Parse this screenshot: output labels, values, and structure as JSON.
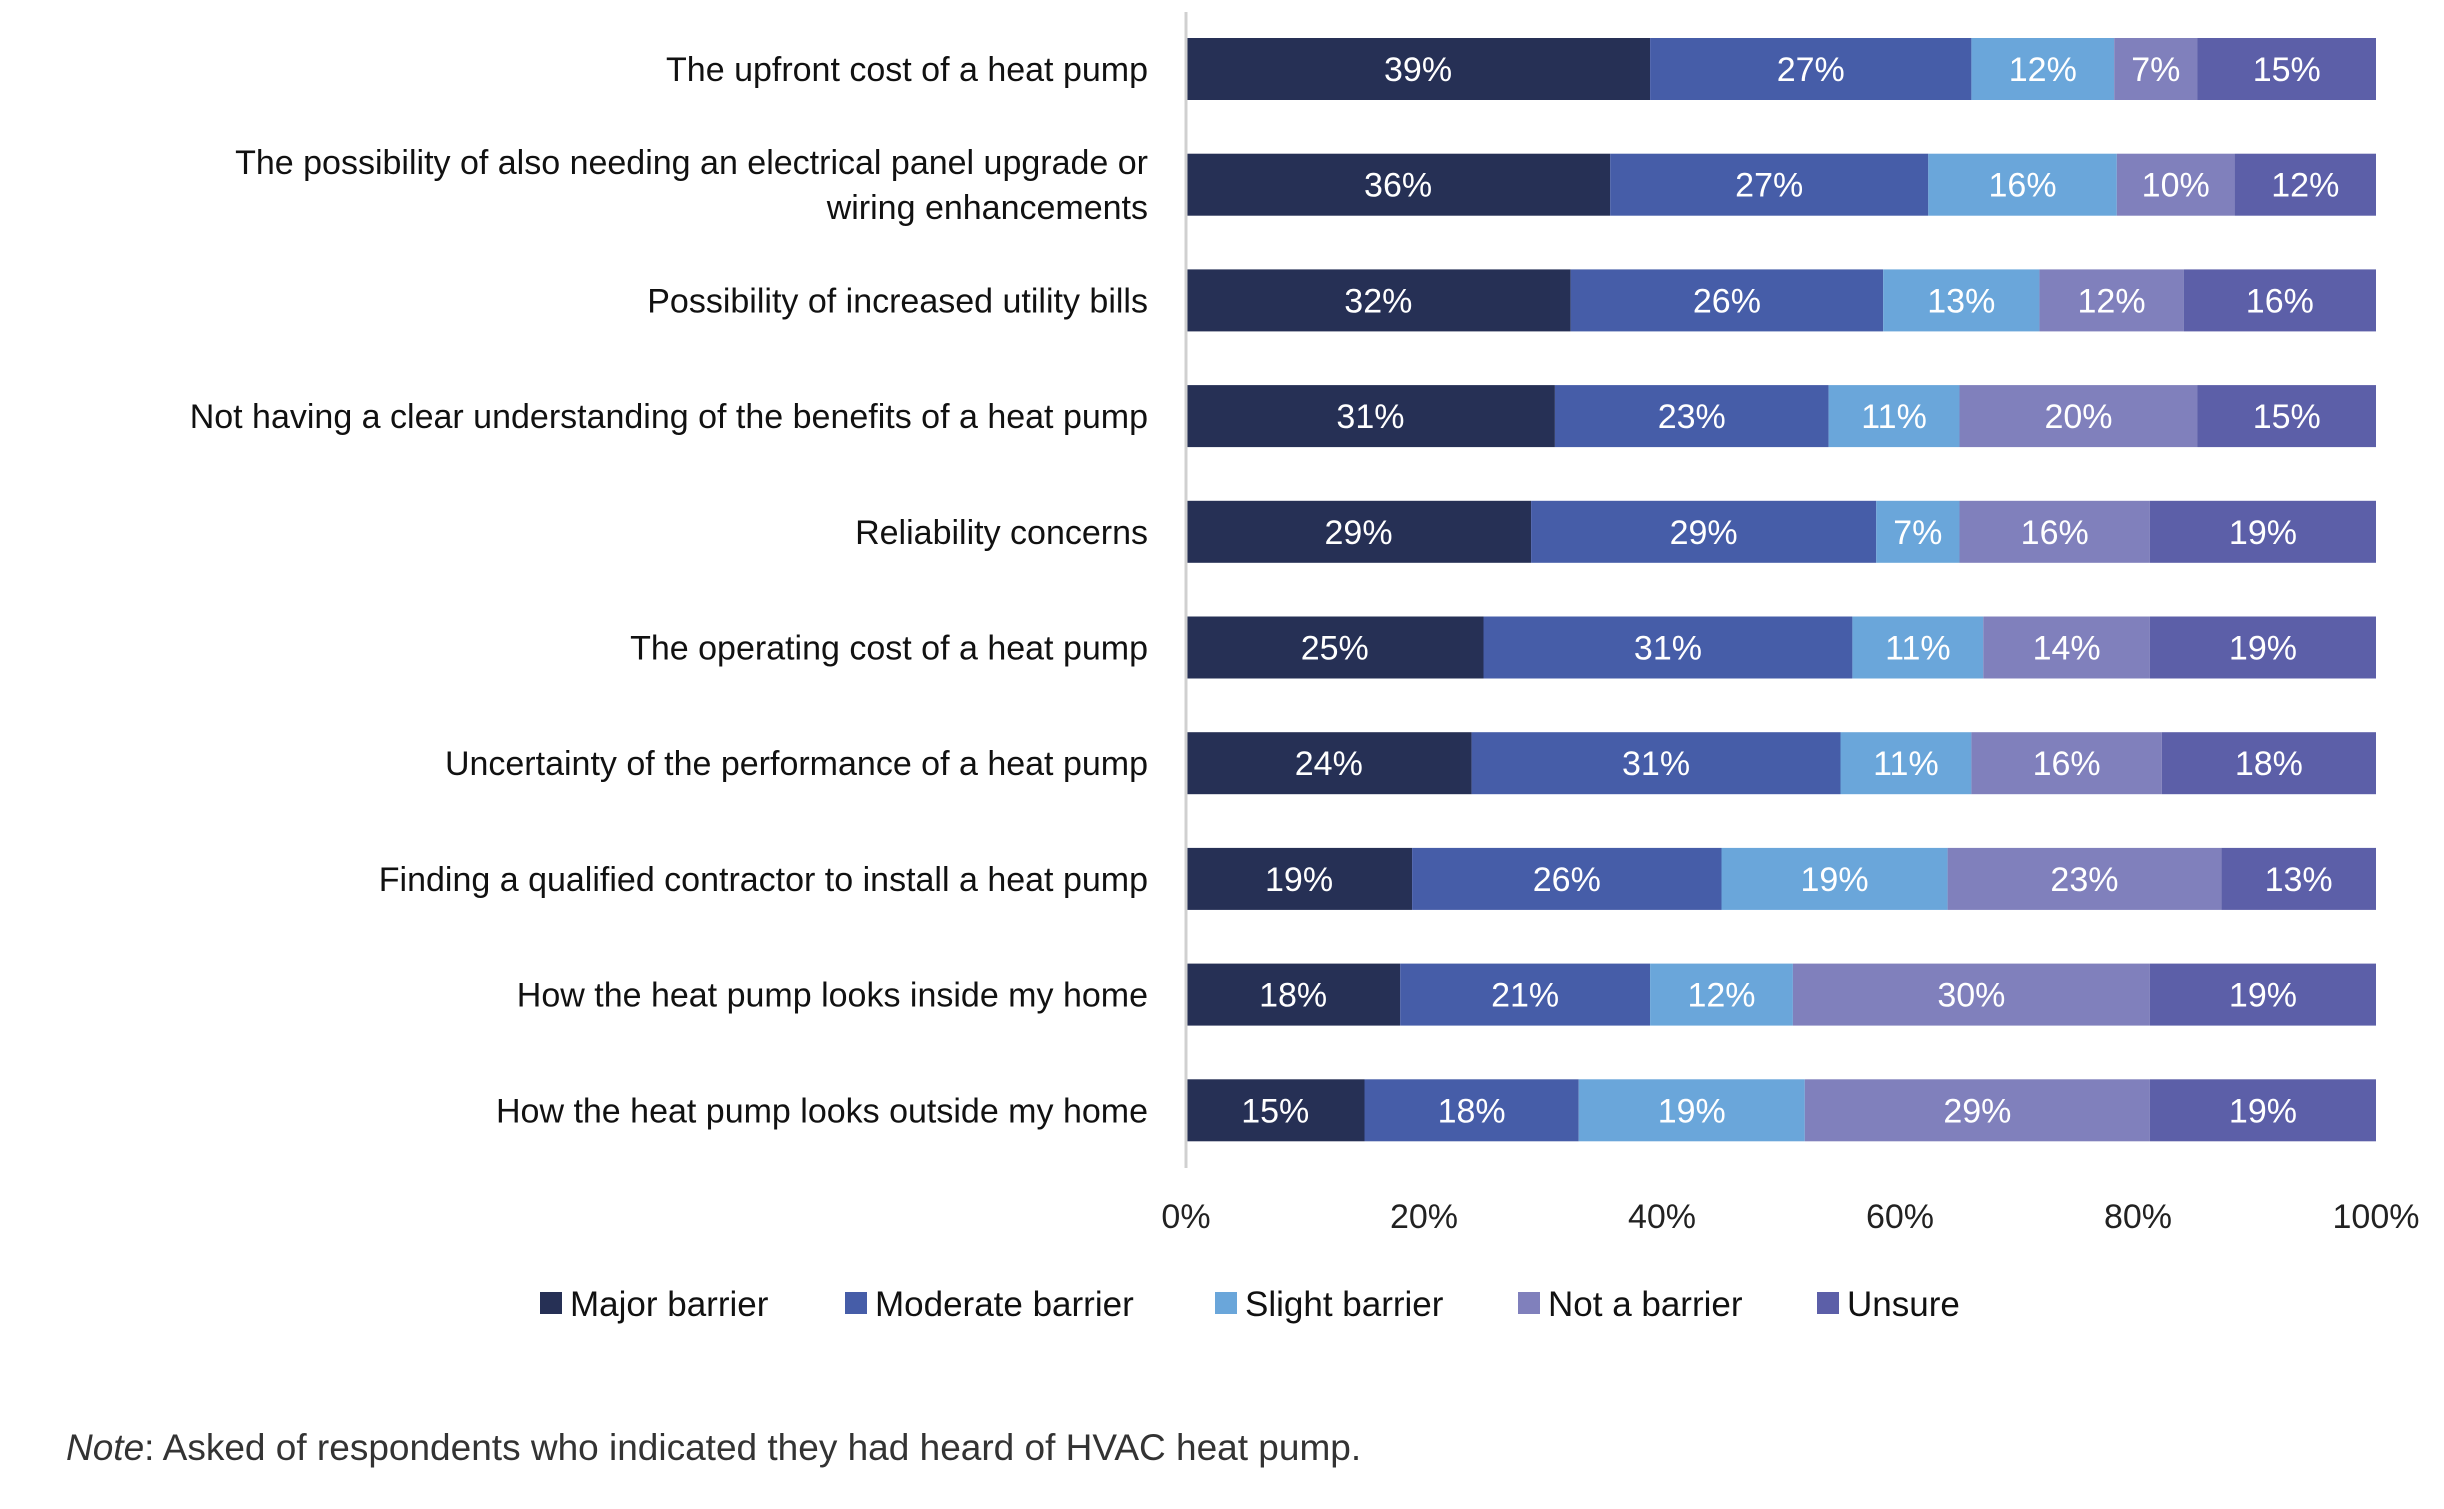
{
  "chart_data": {
    "type": "bar",
    "orientation": "horizontal",
    "stacked": true,
    "categories": [
      [
        "The upfront cost of a heat pump"
      ],
      [
        "The possibility of also needing an electrical panel upgrade or",
        "wiring enhancements"
      ],
      [
        "Possibility of increased utility bills"
      ],
      [
        "Not having a clear understanding of the benefits of a heat pump"
      ],
      [
        "Reliability concerns"
      ],
      [
        "The operating cost of a heat pump"
      ],
      [
        "Uncertainty of the performance of a heat pump"
      ],
      [
        "Finding a qualified contractor to install a heat pump"
      ],
      [
        "How the heat pump looks inside my home"
      ],
      [
        "How the heat pump looks outside my home"
      ]
    ],
    "series": [
      {
        "name": "Major barrier",
        "color": "#263055",
        "values": [
          39,
          36,
          32,
          31,
          29,
          25,
          24,
          19,
          18,
          15
        ]
      },
      {
        "name": "Moderate barrier",
        "color": "#465da8",
        "values": [
          27,
          27,
          26,
          23,
          29,
          31,
          31,
          26,
          21,
          18
        ]
      },
      {
        "name": "Slight barrier",
        "color": "#6aa6da",
        "values": [
          12,
          16,
          13,
          11,
          7,
          11,
          11,
          19,
          12,
          19
        ]
      },
      {
        "name": "Not a barrier",
        "color": "#8080bc",
        "values": [
          7,
          10,
          12,
          20,
          16,
          14,
          16,
          23,
          30,
          29
        ]
      },
      {
        "name": "Unsure",
        "color": "#5c5fa8",
        "values": [
          15,
          12,
          16,
          15,
          19,
          19,
          18,
          13,
          19,
          19
        ]
      }
    ],
    "xlim": [
      0,
      100
    ],
    "xticks": [
      "0%",
      "20%",
      "40%",
      "60%",
      "80%",
      "100%"
    ],
    "legend_position": "bottom",
    "grid": false,
    "value_suffix": "%"
  },
  "note": {
    "label": "Note",
    "text": ": Asked of respondents who indicated they had heard of HVAC heat pump."
  }
}
